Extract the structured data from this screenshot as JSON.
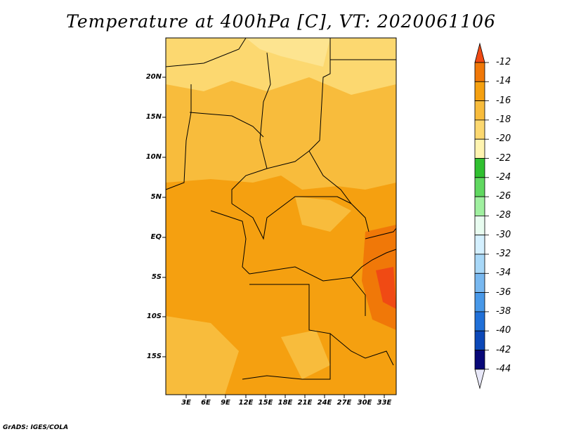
{
  "title": "Temperature at 400hPa [C], VT: 2020061106",
  "credit": "GrADS: IGES/COLA",
  "map": {
    "lat_labels": [
      "20N",
      "15N",
      "10N",
      "5N",
      "EQ",
      "5S",
      "10S",
      "15S"
    ],
    "lon_labels": [
      "3E",
      "6E",
      "9E",
      "12E",
      "15E",
      "18E",
      "21E",
      "24E",
      "27E",
      "30E",
      "33E"
    ]
  },
  "colorbar": {
    "labels": [
      "-12",
      "-14",
      "-16",
      "-18",
      "-20",
      "-22",
      "-24",
      "-26",
      "-28",
      "-30",
      "-32",
      "-34",
      "-36",
      "-38",
      "-40",
      "-42",
      "-44"
    ],
    "colors": [
      "#f04a14",
      "#f07808",
      "#f5a010",
      "#f8bc3c",
      "#fcd870",
      "#fff4b0",
      "#30c030",
      "#60d860",
      "#a0f0a0",
      "#e8fcf0",
      "#d4f0ff",
      "#a8d8f8",
      "#78b8f0",
      "#4898e8",
      "#2070d8",
      "#0c48b8",
      "#080878",
      "#e8e8f8"
    ],
    "ticks_hint": "top triangle -12 orange-red, bottom triangle lavender"
  },
  "colors": {
    "temp_minus16": "#f5a010",
    "temp_minus18": "#f8bc3c",
    "temp_minus20": "#fcd870",
    "temp_minus14": "#f07808"
  }
}
